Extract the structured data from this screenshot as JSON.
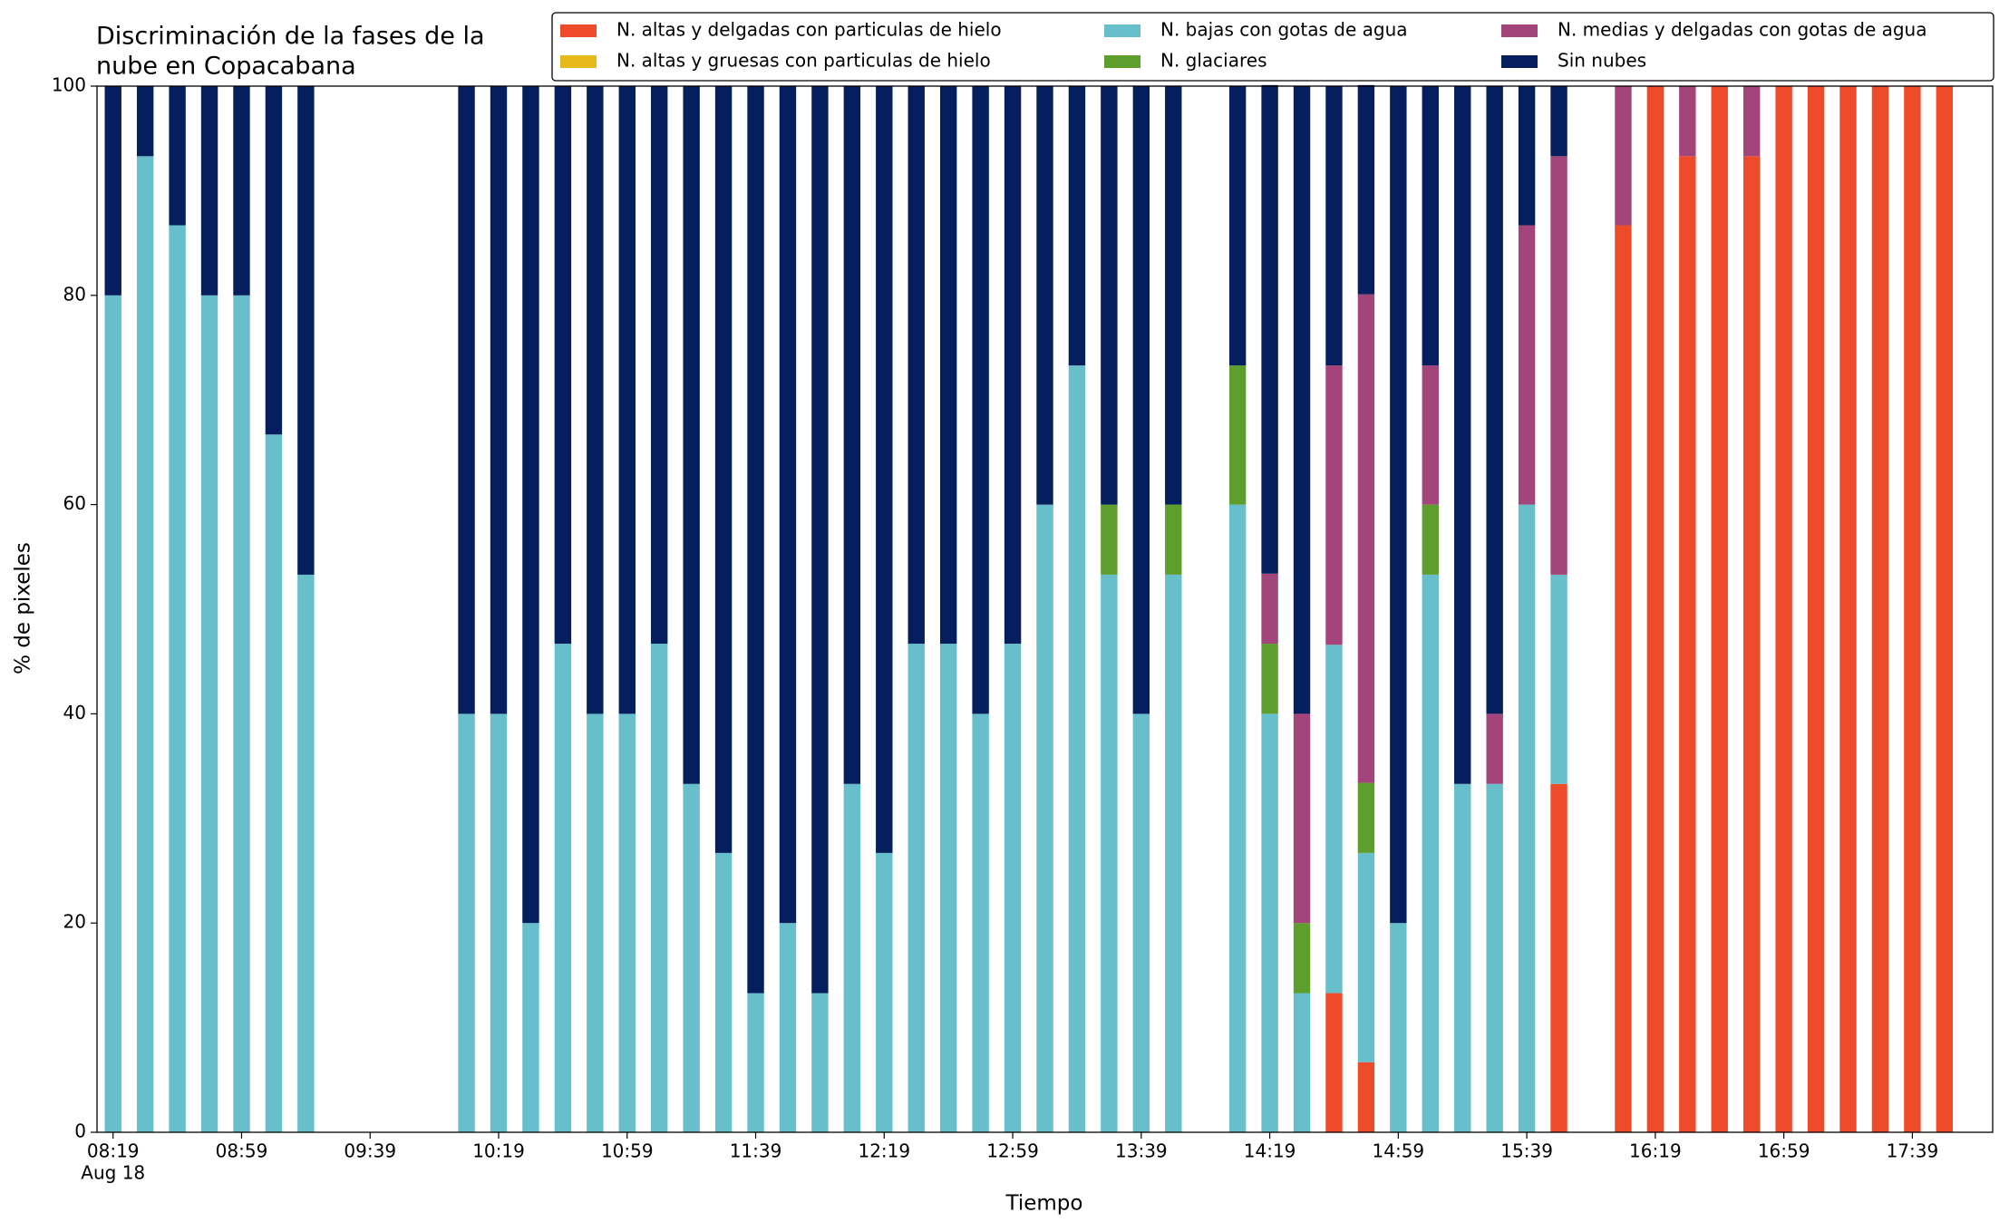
{
  "chart_data": {
    "type": "stacked_bar",
    "title": [
      "Discriminación de la fases de la",
      "nube en Copacabana"
    ],
    "xlabel": "Tiempo",
    "ylabel": "% de pixeles",
    "x_date_label": "Aug 18",
    "x": [
      "08:19",
      "08:29",
      "08:39",
      "08:49",
      "08:59",
      "09:09",
      "09:19",
      "09:29",
      "09:39",
      "09:49",
      "09:59",
      "10:09",
      "10:19",
      "10:29",
      "10:39",
      "10:49",
      "10:59",
      "11:09",
      "11:19",
      "11:29",
      "11:39",
      "11:49",
      "11:59",
      "12:09",
      "12:19",
      "12:29",
      "12:39",
      "12:49",
      "12:59",
      "13:09",
      "13:19",
      "13:29",
      "13:39",
      "13:49",
      "13:59",
      "14:09",
      "14:19",
      "14:29",
      "14:39",
      "14:49",
      "14:59",
      "15:09",
      "15:19",
      "15:29",
      "15:39",
      "15:49",
      "15:59",
      "16:09",
      "16:19",
      "16:29",
      "16:39",
      "16:49",
      "16:59",
      "17:09",
      "17:19",
      "17:29",
      "17:39",
      "17:49"
    ],
    "xlim": [
      "08:14",
      "18:04"
    ],
    "xticks": [
      "08:19",
      "08:59",
      "09:39",
      "10:19",
      "10:59",
      "11:39",
      "12:19",
      "12:59",
      "13:39",
      "14:19",
      "14:59",
      "15:39",
      "16:19",
      "16:59",
      "17:39"
    ],
    "ylim": [
      0,
      100
    ],
    "yticks": [
      0,
      20,
      40,
      60,
      80,
      100
    ],
    "legend": "top-right",
    "series": [
      {
        "name": "N. altas y delgadas con particulas de hielo",
        "color": "#ee4b2b",
        "values": [
          0,
          0,
          0,
          0,
          0,
          0,
          0,
          null,
          null,
          null,
          null,
          0,
          0,
          0,
          0,
          0,
          0,
          0,
          0,
          0,
          0,
          0,
          0,
          0,
          0,
          0,
          0,
          0,
          0,
          0,
          0,
          0,
          0,
          0,
          null,
          0,
          0,
          0,
          13.3,
          6.7,
          0,
          0,
          0,
          0,
          0,
          33.3,
          null,
          86.7,
          100,
          93.3,
          100,
          93.3,
          100,
          100,
          100,
          100,
          100,
          100
        ]
      },
      {
        "name": "N. altas y gruesas con particulas de hielo",
        "color": "#e6b81c",
        "values": [
          0,
          0,
          0,
          0,
          0,
          0,
          0,
          null,
          null,
          null,
          null,
          0,
          0,
          0,
          0,
          0,
          0,
          0,
          0,
          0,
          0,
          0,
          0,
          0,
          0,
          0,
          0,
          0,
          0,
          0,
          0,
          0,
          0,
          0,
          null,
          0,
          0,
          0,
          0,
          0,
          0,
          0,
          0,
          0,
          0,
          0,
          null,
          0,
          0,
          0,
          0,
          0,
          0,
          0,
          0,
          0,
          0,
          0
        ]
      },
      {
        "name": "N. bajas con gotas de agua",
        "color": "#67bfcb",
        "values": [
          80,
          93.3,
          86.7,
          80,
          80,
          66.7,
          53.3,
          null,
          null,
          null,
          null,
          40,
          40,
          20,
          46.7,
          40,
          40,
          46.7,
          33.3,
          26.7,
          13.3,
          20,
          13.3,
          33.3,
          26.7,
          46.7,
          46.7,
          40,
          46.7,
          60,
          73.3,
          53.3,
          40,
          53.3,
          null,
          60,
          40,
          13.3,
          33.3,
          20,
          20,
          53.3,
          33.3,
          33.3,
          60,
          20,
          null,
          0,
          0,
          0,
          0,
          0,
          0,
          0,
          0,
          0,
          0,
          0
        ]
      },
      {
        "name": "N. glaciares",
        "color": "#5d9e2c",
        "values": [
          0,
          0,
          0,
          0,
          0,
          0,
          0,
          null,
          null,
          null,
          null,
          0,
          0,
          0,
          0,
          0,
          0,
          0,
          0,
          0,
          0,
          0,
          0,
          0,
          0,
          0,
          0,
          0,
          0,
          0,
          0,
          6.7,
          0,
          6.7,
          null,
          13.3,
          6.7,
          6.7,
          0,
          6.7,
          0,
          6.7,
          0,
          0,
          0,
          0,
          null,
          0,
          0,
          0,
          0,
          0,
          0,
          0,
          0,
          0,
          0,
          0
        ]
      },
      {
        "name": "N. medias y delgadas con gotas de agua",
        "color": "#a3457a",
        "values": [
          0,
          0,
          0,
          0,
          0,
          0,
          0,
          null,
          null,
          null,
          null,
          0,
          0,
          0,
          0,
          0,
          0,
          0,
          0,
          0,
          0,
          0,
          0,
          0,
          0,
          0,
          0,
          0,
          0,
          0,
          0,
          0,
          0,
          0,
          null,
          0,
          6.7,
          20,
          26.7,
          46.7,
          0,
          13.3,
          0,
          6.7,
          26.7,
          40,
          null,
          13.3,
          0,
          6.7,
          0,
          6.7,
          0,
          0,
          0,
          0,
          0,
          0
        ]
      },
      {
        "name": "Sin nubes",
        "color": "#041e5e",
        "values": [
          20,
          6.7,
          13.3,
          20,
          20,
          33.3,
          46.7,
          null,
          null,
          null,
          null,
          60,
          60,
          80,
          53.3,
          60,
          60,
          53.3,
          66.7,
          73.3,
          86.7,
          80,
          86.7,
          66.7,
          73.3,
          53.3,
          53.3,
          60,
          53.3,
          40,
          26.7,
          40,
          60,
          40,
          null,
          26.7,
          46.7,
          60,
          26.7,
          20,
          80,
          26.7,
          66.7,
          60,
          13.3,
          6.7,
          null,
          0,
          0,
          0,
          0,
          0,
          0,
          0,
          0,
          0,
          0,
          0
        ]
      }
    ]
  }
}
